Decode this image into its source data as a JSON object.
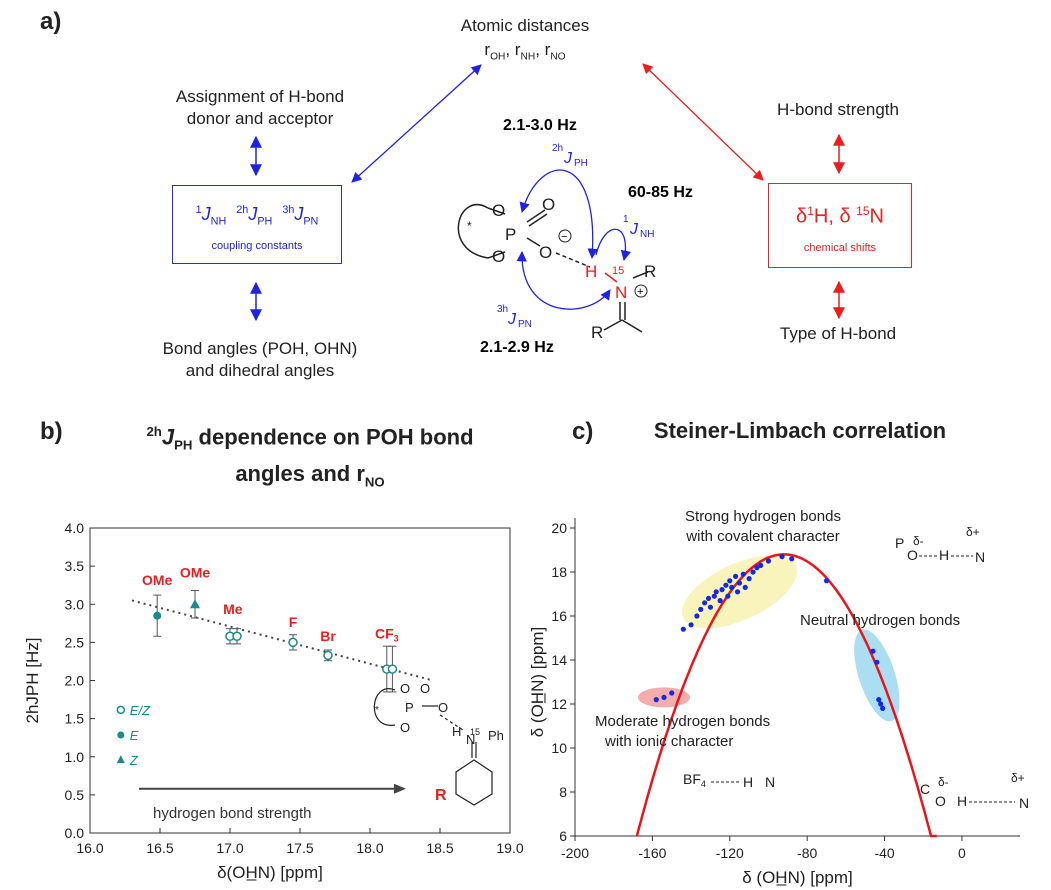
{
  "panel_a": {
    "label": "a)",
    "atomic_distances_title": "Atomic distances",
    "atomic_distances_symbols": [
      "r",
      "OH",
      "r",
      "NH",
      "r",
      "NO"
    ],
    "assignment_line1": "Assignment of H-bond",
    "assignment_line2": "donor and acceptor",
    "bond_angles_line1": "Bond angles (POH, OHN)",
    "bond_angles_line2": "and dihedral angles",
    "hbond_strength": "H-bond strength",
    "hbond_type": "Type of H-bond",
    "coupling_caption": "coupling constants",
    "coupling_J1_sup": "1",
    "coupling_J1_sub": "NH",
    "coupling_J2_sup": "2h",
    "coupling_J2_sub": "PH",
    "coupling_J3_sup": "3h",
    "coupling_J3_sub": "PN",
    "chem_shift_caption": "chemical shifts",
    "chem_shift_H_sup": "1",
    "chem_shift_H": "H,",
    "chem_shift_N_sup": "15",
    "chem_shift_N": "N",
    "delta": "δ",
    "J_letter": "J",
    "val_2h": "2.1-3.0 Hz",
    "val_1": "60-85 Hz",
    "val_3h": "2.1-2.9 Hz",
    "mol_labels": {
      "star": "*",
      "P": "P",
      "O": "O",
      "minus": "−",
      "H": "H",
      "N": "N",
      "n15": "15",
      "R": "R",
      "plus": "+"
    },
    "colors": {
      "blue": "#1f22e6",
      "red": "#ee1c1c"
    }
  },
  "panel_b": {
    "label": "b)",
    "title_line1_sup": "2h",
    "title_line1_J": "J",
    "title_line1_sub": "PH",
    "title_line1_rest": " dependence on POH bond",
    "title_line2": "angles and r",
    "title_line2_sub": "NO",
    "annotation": "hydrogen bond strength",
    "legend": [
      {
        "marker": "open-circle",
        "label": "E/Z"
      },
      {
        "marker": "filled-circle",
        "label": "E"
      },
      {
        "marker": "triangle",
        "label": "Z"
      }
    ],
    "substituents": [
      "OMe",
      "OMe",
      "Me",
      "F",
      "Br",
      "CF",
      "3"
    ],
    "mol_labels": {
      "Ph": "Ph",
      "N15": "15",
      "R": "R"
    }
  },
  "panel_c": {
    "label": "c)",
    "title": "Steiner-Limbach correlation",
    "region_strong_line1": "Strong hydrogen bonds",
    "region_strong_line2": "with covalent character",
    "region_neutral": "Neutral hydrogen bonds",
    "region_moderate_line1": "Moderate hydrogen bonds",
    "region_moderate_line2": "with ionic character",
    "bf4": "BF",
    "bf4_sub": "4",
    "fragment_labels": {
      "dminus": "δ-",
      "dplus": "δ+",
      "P": "P",
      "O": "O",
      "H": "H",
      "N": "N",
      "C": "C"
    }
  },
  "chart_data": [
    {
      "type": "scatter",
      "title": "",
      "xlabel": "δ(OH̲N) [ppm]",
      "ylabel": "2hJPH [Hz]",
      "xlim": [
        16.0,
        19.0
      ],
      "ylim": [
        0.0,
        4.0
      ],
      "x_ticks": [
        "16.0",
        "16.5",
        "17.0",
        "17.5",
        "18.0",
        "18.5",
        "19.0"
      ],
      "y_ticks": [
        "0.0",
        "0.5",
        "1.0",
        "1.5",
        "2.0",
        "2.5",
        "3.0",
        "3.5",
        "4.0"
      ],
      "grid": false,
      "series": [
        {
          "name": "E/Z",
          "marker": "open-circle",
          "points": [
            [
              17.0,
              2.58
            ],
            [
              17.05,
              2.58
            ],
            [
              17.45,
              2.5
            ],
            [
              17.7,
              2.33
            ],
            [
              18.12,
              2.15
            ],
            [
              18.16,
              2.15
            ]
          ],
          "errors": [
            0.1,
            0.1,
            0.1,
            0.07,
            0.3,
            0.3
          ]
        },
        {
          "name": "E",
          "marker": "filled-circle",
          "points": [
            [
              16.48,
              2.85
            ]
          ],
          "errors": [
            0.27
          ]
        },
        {
          "name": "Z",
          "marker": "triangle",
          "points": [
            [
              16.75,
              3.0
            ]
          ],
          "errors": [
            0.18
          ]
        }
      ],
      "trendline": [
        [
          16.3,
          3.05
        ],
        [
          18.45,
          2.0
        ]
      ],
      "color": "#1a8a8a"
    },
    {
      "type": "scatter",
      "title": "Steiner-Limbach correlation",
      "xlabel": "δ (OH̲N) [ppm]",
      "ylabel": "δ (OH̲N) [ppm]",
      "xlim": [
        -200,
        30
      ],
      "ylim": [
        6,
        20
      ],
      "x_ticks": [
        "-200",
        "-160",
        "-120",
        "-80",
        "-40",
        "0"
      ],
      "y_ticks": [
        "6",
        "8",
        "10",
        "12",
        "14",
        "16",
        "18",
        "20"
      ],
      "grid": false,
      "curve_color": "#e8151b",
      "curve": {
        "vertex_x": -92,
        "vertex_y": 18.8,
        "roots": [
          -168,
          -13
        ]
      },
      "points": [
        [
          -158,
          12.2
        ],
        [
          -154,
          12.3
        ],
        [
          -150,
          12.5
        ],
        [
          -144,
          15.4
        ],
        [
          -140,
          15.6
        ],
        [
          -137,
          16.0
        ],
        [
          -135,
          16.3
        ],
        [
          -133,
          16.6
        ],
        [
          -131,
          16.8
        ],
        [
          -130,
          16.4
        ],
        [
          -128,
          16.9
        ],
        [
          -127,
          17.1
        ],
        [
          -125,
          16.7
        ],
        [
          -124,
          17.2
        ],
        [
          -122,
          17.4
        ],
        [
          -121,
          16.9
        ],
        [
          -120,
          17.6
        ],
        [
          -119,
          17.3
        ],
        [
          -117,
          17.8
        ],
        [
          -116,
          17.1
        ],
        [
          -115,
          17.5
        ],
        [
          -113,
          17.9
        ],
        [
          -112,
          17.3
        ],
        [
          -110,
          17.7
        ],
        [
          -108,
          18.0
        ],
        [
          -106,
          18.2
        ],
        [
          -104,
          18.3
        ],
        [
          -100,
          18.5
        ],
        [
          -93,
          18.7
        ],
        [
          -88,
          18.6
        ],
        [
          -70,
          17.6
        ],
        [
          -46,
          14.4
        ],
        [
          -44,
          13.9
        ],
        [
          -43,
          12.2
        ],
        [
          -42,
          12.0
        ],
        [
          -41,
          11.8
        ]
      ],
      "point_color": "#1528e6"
    }
  ]
}
